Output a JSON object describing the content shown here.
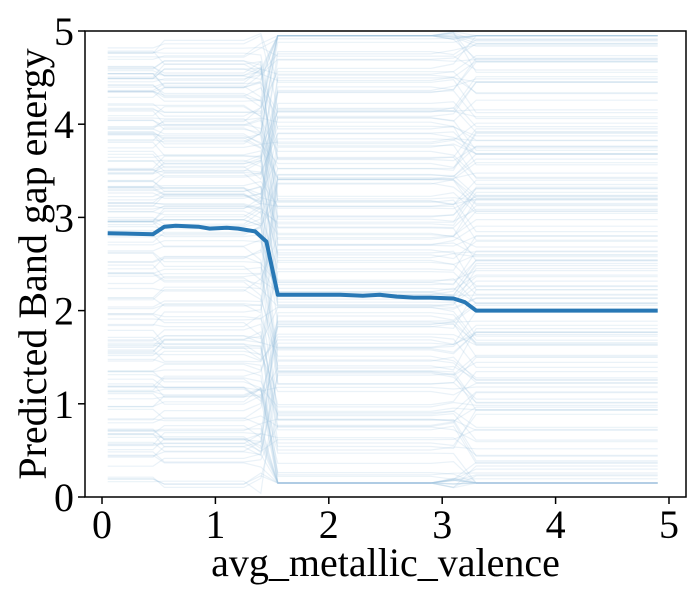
{
  "chart_data": {
    "type": "line",
    "title": "",
    "xlabel": "avg_metallic_valence",
    "ylabel": "Predicted Band gap energy",
    "xlim": [
      -0.15,
      5.15
    ],
    "ylim": [
      0,
      5
    ],
    "xticks": [
      "0",
      "1",
      "2",
      "3",
      "4",
      "5"
    ],
    "yticks": [
      "0",
      "1",
      "2",
      "3",
      "4",
      "5"
    ],
    "grid": false,
    "legend": "none",
    "colors": {
      "average_line": "#2878b5",
      "ice_lines": "#9fc3dd",
      "axes": "#000000"
    },
    "ice_x_range": [
      0.05,
      4.9
    ],
    "ice_curve_count": 180,
    "ice_value_range": [
      0.15,
      4.9
    ],
    "series": [
      {
        "x": [
          0.05,
          0.45,
          0.55,
          0.65,
          0.85,
          0.95,
          1.1,
          1.2,
          1.35,
          1.45,
          1.55,
          1.7,
          1.9,
          2.1,
          2.3,
          2.45,
          2.6,
          2.75,
          2.9,
          3.1,
          3.2,
          3.3,
          3.4,
          3.6,
          3.8,
          4.0,
          4.2,
          4.4,
          4.6,
          4.8,
          4.9
        ],
        "y": [
          2.83,
          2.82,
          2.9,
          2.91,
          2.9,
          2.88,
          2.89,
          2.88,
          2.85,
          2.74,
          2.17,
          2.17,
          2.17,
          2.17,
          2.16,
          2.17,
          2.15,
          2.14,
          2.14,
          2.13,
          2.09,
          2.0,
          2.0,
          2.0,
          2.0,
          2.0,
          2.0,
          2.0,
          2.0,
          2.0,
          2.0
        ]
      }
    ]
  }
}
